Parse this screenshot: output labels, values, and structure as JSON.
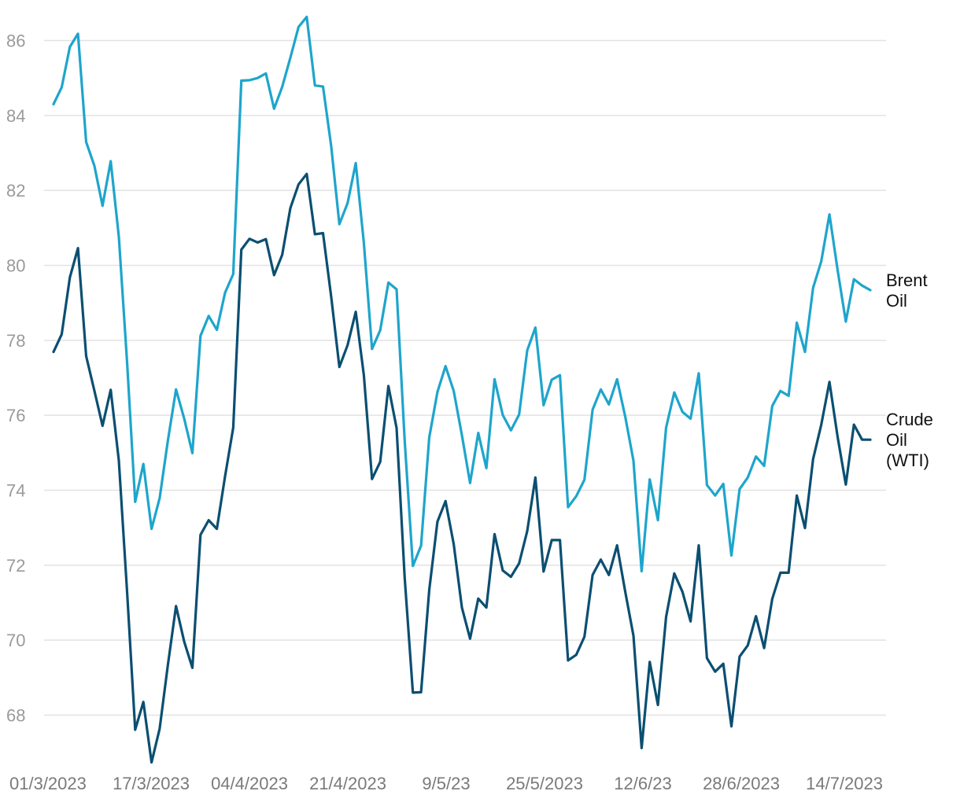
{
  "chart_data": {
    "type": "line",
    "title": "",
    "xlabel": "",
    "ylabel": "",
    "ylim": [
      66.7,
      86.9
    ],
    "yticks": [
      68,
      70,
      72,
      74,
      76,
      78,
      80,
      82,
      84,
      86
    ],
    "grid": true,
    "legend": "direct labels at right end of lines",
    "x_tick_labels": [
      "01/3/2023",
      "17/3/2023",
      "04/4/2023",
      "21/4/2023",
      "9/5/23",
      "25/5/2023",
      "12/6/23",
      "28/6/2023",
      "14/7/2023"
    ],
    "series": [
      {
        "name": "Brent Oil",
        "label_lines": [
          "Brent",
          "Oil"
        ],
        "color": "#1ea5cc",
        "values": [
          84.3,
          84.75,
          85.83,
          86.18,
          83.29,
          82.66,
          81.59,
          82.78,
          80.77,
          77.45,
          73.69,
          74.7,
          72.97,
          73.79,
          75.32,
          76.69,
          75.91,
          74.99,
          78.12,
          78.65,
          78.28,
          79.27,
          79.77,
          84.93,
          84.94,
          85.0,
          85.12,
          84.18,
          84.76,
          85.54,
          86.36,
          86.63,
          84.8,
          84.77,
          83.18,
          81.1,
          81.66,
          82.73,
          80.6,
          77.77,
          78.27,
          79.54,
          79.36,
          75.32,
          71.98,
          72.52,
          75.41,
          76.62,
          77.31,
          76.65,
          75.47,
          74.19,
          75.53,
          74.59,
          76.96,
          76.01,
          75.6,
          76.02,
          77.73,
          78.34,
          76.27,
          76.95,
          77.07,
          73.55,
          73.84,
          74.28,
          76.15,
          76.69,
          76.29,
          76.96,
          75.96,
          74.79,
          71.84,
          74.29,
          73.2,
          75.67,
          76.61,
          76.09,
          75.91,
          77.12,
          74.14,
          73.86,
          74.17,
          72.26,
          74.03,
          74.34,
          74.9,
          74.65,
          76.25,
          76.65,
          76.52,
          78.47,
          77.69,
          79.4,
          80.11,
          81.36,
          79.87,
          78.5,
          79.63,
          79.46,
          79.34
        ]
      },
      {
        "name": "Crude Oil (WTI)",
        "label_lines": [
          "Crude",
          "Oil",
          "(WTI)"
        ],
        "color": "#0b4f71",
        "values": [
          77.69,
          78.16,
          79.68,
          80.46,
          77.58,
          76.66,
          75.72,
          76.68,
          74.8,
          71.33,
          67.61,
          68.35,
          66.74,
          67.64,
          69.33,
          70.91,
          69.96,
          69.26,
          72.81,
          73.2,
          72.97,
          74.37,
          75.67,
          80.42,
          80.71,
          80.61,
          80.7,
          79.74,
          80.28,
          81.53,
          82.16,
          82.44,
          80.83,
          80.86,
          79.16,
          77.29,
          77.87,
          78.76,
          77.07,
          74.3,
          74.76,
          76.78,
          75.66,
          71.66,
          68.6,
          68.61,
          71.34,
          73.16,
          73.71,
          72.56,
          70.87,
          70.04,
          71.11,
          70.87,
          72.83,
          71.86,
          71.69,
          72.05,
          72.91,
          74.34,
          71.83,
          72.67,
          72.67,
          69.46,
          69.61,
          70.09,
          71.74,
          72.15,
          71.74,
          72.53,
          71.29,
          70.12,
          67.12,
          69.42,
          68.27,
          70.62,
          71.78,
          71.29,
          70.5,
          72.53,
          69.52,
          69.16,
          69.37,
          67.7,
          69.56,
          69.86,
          70.64,
          69.79,
          71.1,
          71.8,
          71.8,
          73.86,
          72.99,
          74.83,
          75.75,
          76.89,
          75.42,
          74.15,
          75.75,
          75.35,
          75.35
        ]
      }
    ]
  }
}
